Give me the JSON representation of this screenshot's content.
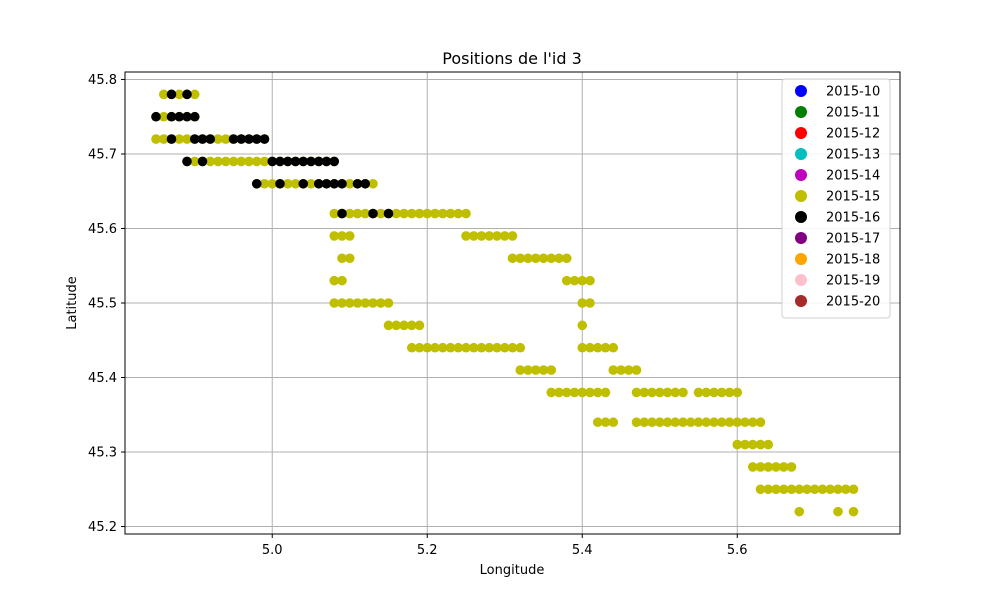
{
  "chart_data": {
    "type": "scatter",
    "title": "Positions de l'id 3",
    "xlabel": "Longitude",
    "ylabel": "Latitude",
    "xlim": [
      4.81,
      5.81
    ],
    "ylim": [
      45.19,
      45.81
    ],
    "xticks": [
      5.0,
      5.2,
      5.4,
      5.6
    ],
    "xtick_labels": [
      "5.0",
      "5.2",
      "5.4",
      "5.6"
    ],
    "yticks": [
      45.2,
      45.3,
      45.4,
      45.5,
      45.6,
      45.7,
      45.8
    ],
    "ytick_labels": [
      "45.2",
      "45.3",
      "45.4",
      "45.5",
      "45.6",
      "45.7",
      "45.8"
    ],
    "grid": true,
    "legend_position": "top-right",
    "legend": [
      {
        "label": "2015-10",
        "color": "#0000ff"
      },
      {
        "label": "2015-11",
        "color": "#008000"
      },
      {
        "label": "2015-12",
        "color": "#ff0000"
      },
      {
        "label": "2015-13",
        "color": "#00bfbf"
      },
      {
        "label": "2015-14",
        "color": "#bf00bf"
      },
      {
        "label": "2015-15",
        "color": "#bfbf00"
      },
      {
        "label": "2015-16",
        "color": "#000000"
      },
      {
        "label": "2015-17",
        "color": "#800080"
      },
      {
        "label": "2015-18",
        "color": "#ffa500"
      },
      {
        "label": "2015-19",
        "color": "#ffc0cb"
      },
      {
        "label": "2015-20",
        "color": "#a52a2a"
      }
    ],
    "series": [
      {
        "name": "2015-15",
        "color": "#bfbf00",
        "segments": [
          {
            "lat": 45.78,
            "lon_from": 4.86,
            "lon_to": 4.9
          },
          {
            "lat": 45.75,
            "lon_from": 4.85,
            "lon_to": 4.9
          },
          {
            "lat": 45.72,
            "lon_from": 4.85,
            "lon_to": 4.99
          },
          {
            "lat": 45.69,
            "lon_from": 4.89,
            "lon_to": 5.08
          },
          {
            "lat": 45.66,
            "lon_from": 4.98,
            "lon_to": 5.13
          },
          {
            "lat": 45.62,
            "lon_from": 5.08,
            "lon_to": 5.25
          },
          {
            "lat": 45.59,
            "lon_from": 5.08,
            "lon_to": 5.1
          },
          {
            "lat": 45.59,
            "lon_from": 5.25,
            "lon_to": 5.31
          },
          {
            "lat": 45.56,
            "lon_from": 5.09,
            "lon_to": 5.1
          },
          {
            "lat": 45.56,
            "lon_from": 5.31,
            "lon_to": 5.38
          },
          {
            "lat": 45.53,
            "lon_from": 5.08,
            "lon_to": 5.09
          },
          {
            "lat": 45.53,
            "lon_from": 5.38,
            "lon_to": 5.41
          },
          {
            "lat": 45.5,
            "lon_from": 5.08,
            "lon_to": 5.15
          },
          {
            "lat": 45.5,
            "lon_from": 5.4,
            "lon_to": 5.41
          },
          {
            "lat": 45.47,
            "lon_from": 5.15,
            "lon_to": 5.19
          },
          {
            "lat": 45.47,
            "lon_from": 5.4,
            "lon_to": 5.4
          },
          {
            "lat": 45.44,
            "lon_from": 5.18,
            "lon_to": 5.32
          },
          {
            "lat": 45.44,
            "lon_from": 5.4,
            "lon_to": 5.44
          },
          {
            "lat": 45.41,
            "lon_from": 5.32,
            "lon_to": 5.36
          },
          {
            "lat": 45.41,
            "lon_from": 5.44,
            "lon_to": 5.47
          },
          {
            "lat": 45.38,
            "lon_from": 5.36,
            "lon_to": 5.43
          },
          {
            "lat": 45.38,
            "lon_from": 5.47,
            "lon_to": 5.53
          },
          {
            "lat": 45.38,
            "lon_from": 5.55,
            "lon_to": 5.6
          },
          {
            "lat": 45.34,
            "lon_from": 5.42,
            "lon_to": 5.44
          },
          {
            "lat": 45.34,
            "lon_from": 5.47,
            "lon_to": 5.63
          },
          {
            "lat": 45.31,
            "lon_from": 5.6,
            "lon_to": 5.64
          },
          {
            "lat": 45.28,
            "lon_from": 5.62,
            "lon_to": 5.67
          },
          {
            "lat": 45.25,
            "lon_from": 5.63,
            "lon_to": 5.75
          },
          {
            "lat": 45.22,
            "lon_from": 5.68,
            "lon_to": 5.68
          },
          {
            "lat": 45.22,
            "lon_from": 5.73,
            "lon_to": 5.73
          },
          {
            "lat": 45.22,
            "lon_from": 5.75,
            "lon_to": 5.75
          }
        ]
      },
      {
        "name": "2015-16",
        "color": "#000000",
        "points": [
          [
            4.87,
            45.78
          ],
          [
            4.89,
            45.78
          ],
          [
            4.85,
            45.75
          ],
          [
            4.87,
            45.75
          ],
          [
            4.88,
            45.75
          ],
          [
            4.89,
            45.75
          ],
          [
            4.9,
            45.75
          ],
          [
            4.87,
            45.72
          ],
          [
            4.9,
            45.72
          ],
          [
            4.91,
            45.72
          ],
          [
            4.92,
            45.72
          ],
          [
            4.95,
            45.72
          ],
          [
            4.96,
            45.72
          ],
          [
            4.97,
            45.72
          ],
          [
            4.98,
            45.72
          ],
          [
            4.99,
            45.72
          ],
          [
            4.89,
            45.69
          ],
          [
            4.91,
            45.69
          ],
          [
            5.0,
            45.69
          ],
          [
            5.01,
            45.69
          ],
          [
            5.02,
            45.69
          ],
          [
            5.03,
            45.69
          ],
          [
            5.04,
            45.69
          ],
          [
            5.05,
            45.69
          ],
          [
            5.06,
            45.69
          ],
          [
            5.07,
            45.69
          ],
          [
            5.08,
            45.69
          ],
          [
            4.98,
            45.66
          ],
          [
            5.01,
            45.66
          ],
          [
            5.04,
            45.66
          ],
          [
            5.06,
            45.66
          ],
          [
            5.07,
            45.66
          ],
          [
            5.08,
            45.66
          ],
          [
            5.09,
            45.66
          ],
          [
            5.11,
            45.66
          ],
          [
            5.12,
            45.66
          ],
          [
            5.09,
            45.62
          ],
          [
            5.13,
            45.62
          ],
          [
            5.15,
            45.62
          ]
        ]
      }
    ]
  }
}
